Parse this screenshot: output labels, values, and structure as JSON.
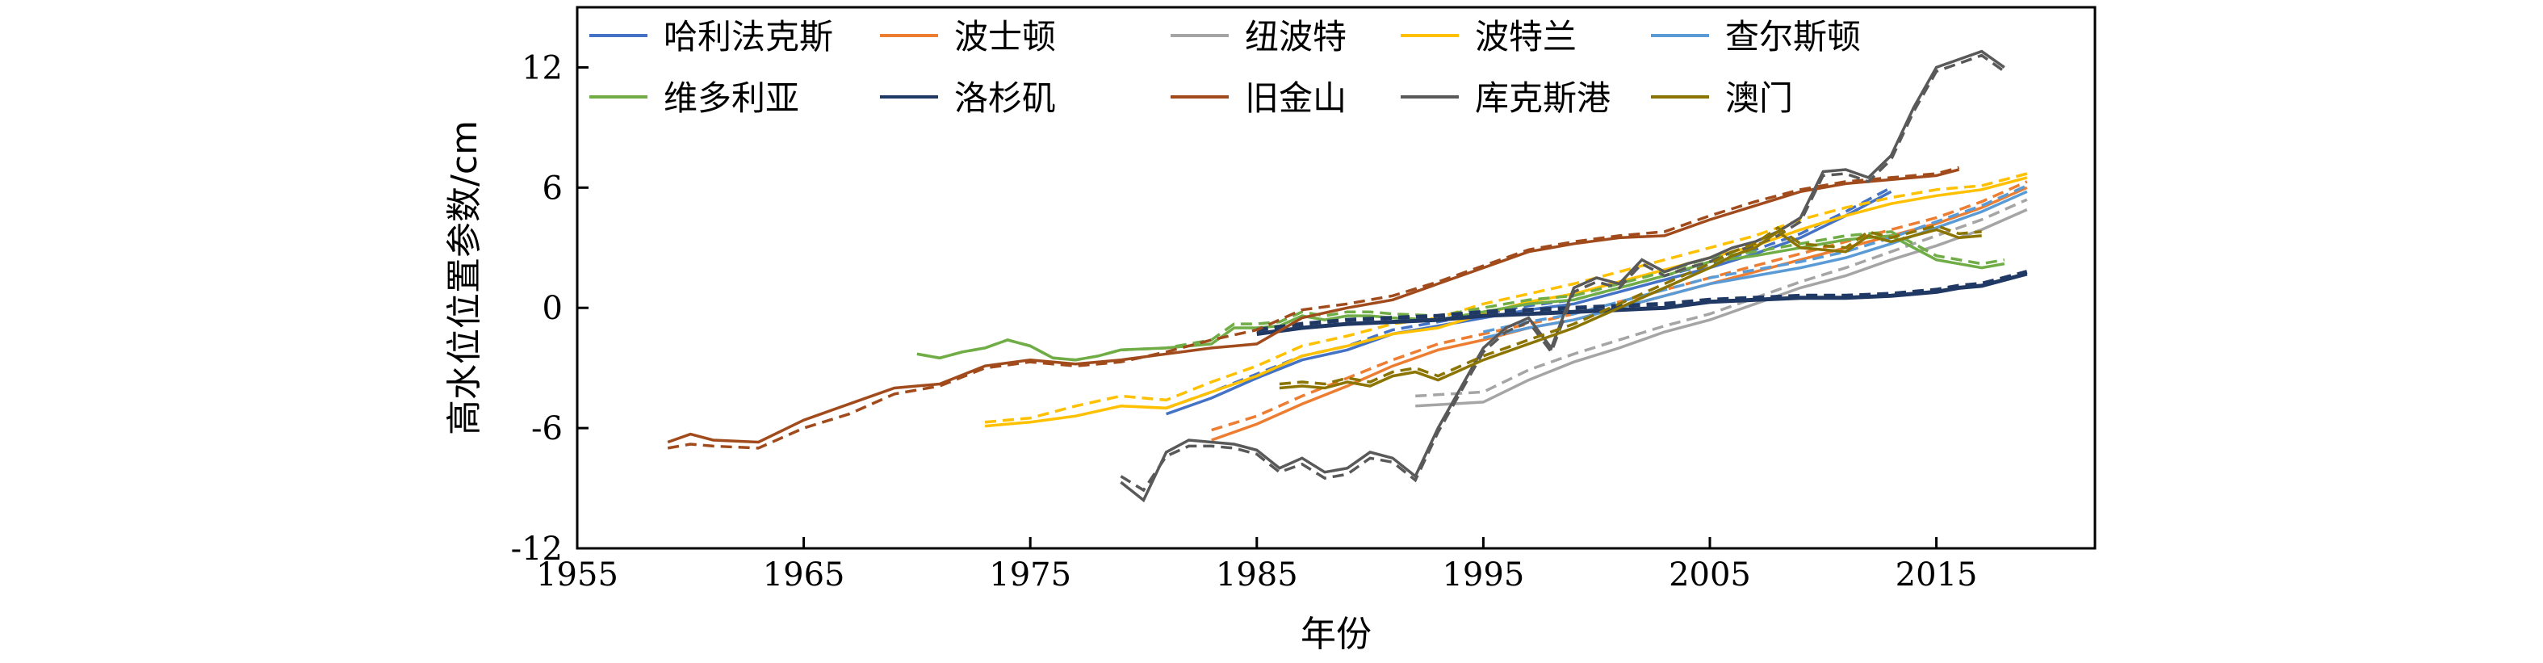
{
  "chart_data": {
    "type": "line",
    "xlabel": "年份",
    "ylabel": "高水位位置参数/cm",
    "xlim": [
      1955,
      2022
    ],
    "ylim": [
      -12,
      15
    ],
    "xticks": [
      1955,
      1965,
      1975,
      1985,
      1995,
      2005,
      2015
    ],
    "yticks": [
      -12,
      -6,
      0,
      6,
      12
    ],
    "grid": false,
    "legend_position": "top",
    "series": [
      {
        "name": "哈利法克斯",
        "color": "#4472c4",
        "x": [
          1981,
          1983,
          1985,
          1987,
          1989,
          1991,
          1993,
          1995,
          1997,
          1999,
          2001,
          2003,
          2005,
          2007,
          2009,
          2011,
          2013
        ],
        "y": [
          -5.3,
          -4.5,
          -3.5,
          -2.6,
          -2.1,
          -1.3,
          -0.9,
          -0.5,
          -0.1,
          0.2,
          0.8,
          1.4,
          2.0,
          2.7,
          3.5,
          4.6,
          5.8
        ],
        "y_dashed": [
          -5.0,
          -4.2,
          -3.3,
          -2.4,
          -1.9,
          -1.1,
          -0.7,
          -0.3,
          0.1,
          0.4,
          1.0,
          1.6,
          2.2,
          2.9,
          3.7,
          4.8,
          6.0
        ]
      },
      {
        "name": "波士顿",
        "color": "#ed7d31",
        "x": [
          1983,
          1985,
          1987,
          1989,
          1991,
          1993,
          1995,
          1997,
          1999,
          2001,
          2003,
          2005,
          2007,
          2009,
          2011,
          2013,
          2015,
          2017,
          2019
        ],
        "y": [
          -6.6,
          -5.8,
          -4.8,
          -3.9,
          -2.9,
          -2.1,
          -1.6,
          -1.0,
          -0.6,
          0.0,
          0.6,
          1.2,
          1.8,
          2.4,
          3.0,
          3.6,
          4.2,
          5.0,
          6.0
        ],
        "y_dashed": [
          -6.1,
          -5.4,
          -4.4,
          -3.5,
          -2.6,
          -1.8,
          -1.3,
          -0.8,
          -0.3,
          0.3,
          0.9,
          1.5,
          2.1,
          2.7,
          3.3,
          3.9,
          4.5,
          5.3,
          6.3
        ]
      },
      {
        "name": "纽波特",
        "color": "#a5a5a5",
        "x": [
          1992,
          1995,
          1997,
          1999,
          2001,
          2003,
          2005,
          2007,
          2009,
          2011,
          2013,
          2015,
          2017,
          2019
        ],
        "y": [
          -4.9,
          -4.7,
          -3.6,
          -2.7,
          -2.0,
          -1.2,
          -0.6,
          0.2,
          1.0,
          1.6,
          2.4,
          3.1,
          3.9,
          4.9
        ],
        "y_dashed": [
          -4.4,
          -4.2,
          -3.1,
          -2.3,
          -1.6,
          -0.9,
          -0.3,
          0.5,
          1.3,
          2.0,
          2.8,
          3.6,
          4.4,
          5.4
        ]
      },
      {
        "name": "波特兰",
        "color": "#ffc000",
        "x": [
          1973,
          1975,
          1977,
          1979,
          1981,
          1983,
          1985,
          1987,
          1989,
          1991,
          1993,
          1995,
          1997,
          1999,
          2001,
          2003,
          2005,
          2007,
          2009,
          2011,
          2013,
          2015,
          2017,
          2019
        ],
        "y": [
          -5.9,
          -5.7,
          -5.4,
          -4.9,
          -5.0,
          -4.2,
          -3.4,
          -2.4,
          -1.9,
          -1.3,
          -1.0,
          -0.3,
          0.3,
          0.7,
          1.3,
          1.9,
          2.5,
          3.1,
          3.9,
          4.6,
          5.2,
          5.6,
          5.9,
          6.5
        ],
        "y_dashed": [
          -5.7,
          -5.5,
          -4.9,
          -4.4,
          -4.6,
          -3.7,
          -2.9,
          -1.9,
          -1.4,
          -0.8,
          -0.5,
          0.2,
          0.7,
          1.2,
          1.8,
          2.4,
          3.0,
          3.6,
          4.4,
          5.0,
          5.5,
          5.9,
          6.1,
          6.7
        ]
      },
      {
        "name": "查尔斯顿",
        "color": "#5b9bd5",
        "x": [
          1995,
          1997,
          1999,
          2001,
          2003,
          2005,
          2007,
          2009,
          2011,
          2013,
          2015,
          2017,
          2019
        ],
        "y": [
          -1.5,
          -1.0,
          -0.6,
          0.0,
          0.6,
          1.2,
          1.6,
          2.0,
          2.5,
          3.2,
          4.0,
          4.8,
          5.8
        ],
        "y_dashed": [
          -1.2,
          -0.7,
          -0.3,
          0.3,
          0.9,
          1.5,
          1.9,
          2.3,
          2.8,
          3.5,
          4.3,
          5.1,
          6.1
        ]
      },
      {
        "name": "维多利亚",
        "color": "#70ad47",
        "x": [
          1970,
          1971,
          1972,
          1973,
          1974,
          1975,
          1976,
          1977,
          1978,
          1979,
          1981,
          1983,
          1984,
          1985,
          1986,
          1987,
          1988,
          1989,
          1990,
          1991,
          1993,
          1995,
          1997,
          1999,
          2001,
          2003,
          2005,
          2007,
          2009,
          2011,
          2013,
          2015,
          2017,
          2018
        ],
        "y": [
          -2.3,
          -2.5,
          -2.2,
          -2.0,
          -1.6,
          -1.9,
          -2.5,
          -2.6,
          -2.4,
          -2.1,
          -2.0,
          -1.8,
          -1.0,
          -1.0,
          -0.9,
          -0.4,
          -0.6,
          -0.4,
          -0.4,
          -0.5,
          -0.6,
          -0.2,
          0.2,
          0.4,
          1.0,
          1.6,
          2.3,
          2.6,
          3.0,
          3.4,
          3.6,
          2.4,
          2.0,
          2.2
        ],
        "y_dashed": [
          -2.3,
          -2.5,
          -2.2,
          -2.0,
          -1.6,
          -1.9,
          -2.5,
          -2.6,
          -2.4,
          -2.1,
          -2.0,
          -1.6,
          -0.8,
          -0.8,
          -0.7,
          -0.2,
          -0.4,
          -0.2,
          -0.2,
          -0.3,
          -0.4,
          0.0,
          0.4,
          0.6,
          1.2,
          1.8,
          2.5,
          2.8,
          3.2,
          3.6,
          3.8,
          2.6,
          2.2,
          2.4
        ]
      },
      {
        "name": "洛杉矶",
        "color": "#203864",
        "x": [
          1985,
          1987,
          1989,
          1991,
          1993,
          1995,
          1997,
          1999,
          2001,
          2003,
          2005,
          2007,
          2009,
          2011,
          2013,
          2015,
          2016,
          2017,
          2019
        ],
        "y": [
          -1.3,
          -1.0,
          -0.8,
          -0.7,
          -0.6,
          -0.4,
          -0.3,
          -0.2,
          -0.1,
          0.0,
          0.3,
          0.4,
          0.5,
          0.5,
          0.6,
          0.8,
          1.0,
          1.1,
          1.7
        ],
        "y_dashed": [
          -1.1,
          -0.8,
          -0.6,
          -0.5,
          -0.4,
          -0.2,
          -0.1,
          0.0,
          0.1,
          0.2,
          0.4,
          0.5,
          0.6,
          0.6,
          0.7,
          0.9,
          1.1,
          1.2,
          1.8
        ]
      },
      {
        "name": "旧金山",
        "color": "#a14b1c",
        "x": [
          1959,
          1960,
          1961,
          1963,
          1965,
          1967,
          1969,
          1971,
          1973,
          1975,
          1977,
          1979,
          1981,
          1983,
          1985,
          1987,
          1989,
          1991,
          1993,
          1995,
          1997,
          1999,
          2001,
          2003,
          2005,
          2007,
          2009,
          2011,
          2013,
          2015,
          2016
        ],
        "y": [
          -6.7,
          -6.3,
          -6.6,
          -6.7,
          -5.6,
          -4.8,
          -4.0,
          -3.8,
          -2.9,
          -2.6,
          -2.8,
          -2.6,
          -2.3,
          -2.0,
          -1.8,
          -0.5,
          0.0,
          0.4,
          1.2,
          2.0,
          2.8,
          3.2,
          3.5,
          3.6,
          4.4,
          5.1,
          5.8,
          6.2,
          6.4,
          6.6,
          6.9
        ],
        "y_dashed": [
          -7.0,
          -6.8,
          -6.9,
          -7.0,
          -6.0,
          -5.3,
          -4.3,
          -3.9,
          -3.0,
          -2.7,
          -2.9,
          -2.7,
          -2.2,
          -1.6,
          -1.1,
          -0.1,
          0.2,
          0.6,
          1.3,
          2.1,
          2.9,
          3.3,
          3.6,
          3.8,
          4.6,
          5.3,
          5.9,
          6.3,
          6.5,
          6.7,
          7.0
        ]
      },
      {
        "name": "库克斯港",
        "color": "#595959",
        "x": [
          1979,
          1980,
          1981,
          1982,
          1983,
          1984,
          1985,
          1986,
          1987,
          1988,
          1989,
          1990,
          1991,
          1992,
          1993,
          1994,
          1995,
          1996,
          1997,
          1998,
          1999,
          2000,
          2001,
          2002,
          2003,
          2004,
          2005,
          2006,
          2007,
          2008,
          2009,
          2010,
          2011,
          2012,
          2013,
          2014,
          2015,
          2016,
          2017,
          2018
        ],
        "y": [
          -8.7,
          -9.6,
          -7.2,
          -6.6,
          -6.7,
          -6.8,
          -7.1,
          -8.0,
          -7.5,
          -8.2,
          -8.0,
          -7.2,
          -7.5,
          -8.4,
          -6.0,
          -4.0,
          -2.0,
          -1.0,
          -0.5,
          -2.0,
          1.0,
          1.5,
          1.2,
          2.4,
          1.8,
          2.2,
          2.5,
          3.0,
          3.3,
          3.8,
          4.5,
          6.8,
          6.9,
          6.5,
          7.6,
          10.0,
          12.0,
          12.4,
          12.8,
          12.0
        ],
        "y_dashed": [
          -8.4,
          -9.1,
          -7.4,
          -6.9,
          -6.9,
          -7.0,
          -7.3,
          -8.2,
          -7.8,
          -8.5,
          -8.3,
          -7.5,
          -7.7,
          -8.6,
          -6.2,
          -4.2,
          -2.2,
          -1.2,
          -0.7,
          -2.2,
          0.8,
          1.3,
          1.0,
          2.2,
          1.6,
          2.0,
          2.3,
          2.8,
          3.1,
          3.6,
          4.3,
          6.6,
          6.7,
          6.3,
          7.4,
          9.8,
          11.8,
          12.2,
          12.6,
          11.8
        ]
      },
      {
        "name": "澳门",
        "color": "#8b7500",
        "x": [
          1986,
          1987,
          1988,
          1989,
          1990,
          1991,
          1992,
          1993,
          1995,
          1997,
          1999,
          2001,
          2003,
          2005,
          2006,
          2007,
          2008,
          2009,
          2010,
          2011,
          2012,
          2013,
          2014,
          2015,
          2016,
          2017
        ],
        "y": [
          -4.0,
          -3.9,
          -4.0,
          -3.7,
          -3.9,
          -3.4,
          -3.2,
          -3.6,
          -2.6,
          -1.8,
          -1.0,
          0.0,
          1.0,
          2.0,
          2.6,
          3.0,
          3.8,
          3.0,
          2.9,
          2.8,
          3.6,
          3.3,
          3.6,
          3.9,
          3.5,
          3.6
        ],
        "y_dashed": [
          -3.8,
          -3.7,
          -3.8,
          -3.5,
          -3.7,
          -3.2,
          -3.0,
          -3.4,
          -2.4,
          -1.6,
          -0.8,
          0.2,
          1.2,
          2.2,
          2.8,
          3.2,
          4.0,
          3.2,
          3.1,
          3.0,
          3.8,
          3.5,
          3.8,
          4.1,
          3.7,
          3.8
        ]
      }
    ]
  }
}
